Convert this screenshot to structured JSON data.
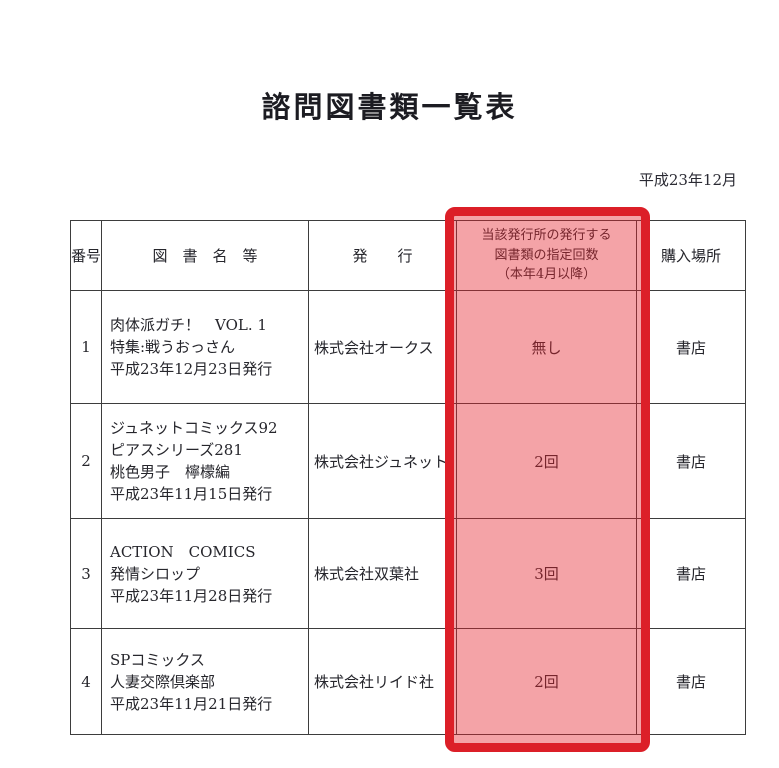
{
  "page": {
    "title": "諮問図書類一覧表",
    "date": "平成23年12月"
  },
  "colors": {
    "highlight_border": "#dc1f28",
    "highlight_fill": "rgba(229,35,45,0.42)",
    "table_border": "#3d3d3d",
    "text": "#26262c"
  },
  "table": {
    "headers": {
      "no": "番号",
      "title": "図　書　名　等",
      "publisher": "発　　行",
      "count_lines": [
        "当該発行所の発行する",
        "図書類の指定回数",
        "（本年4月以降）"
      ],
      "place": "購入場所"
    },
    "rows": [
      {
        "no": "1",
        "title_lines": [
          "肉体派ガチ！　VOL. 1",
          "特集:戦うおっさん",
          "平成23年12月23日発行"
        ],
        "publisher": "株式会社オークス",
        "count": "無し",
        "place": "書店"
      },
      {
        "no": "2",
        "title_lines": [
          "ジュネットコミックス92",
          "ピアスシリーズ281",
          "桃色男子　檸檬編",
          "平成23年11月15日発行"
        ],
        "publisher": "株式会社ジュネット",
        "count": "2回",
        "place": "書店"
      },
      {
        "no": "3",
        "title_lines": [
          "ACTION　COMICS",
          "発情シロップ",
          "平成23年11月28日発行"
        ],
        "publisher": "株式会社双葉社",
        "count": "3回",
        "place": "書店"
      },
      {
        "no": "4",
        "title_lines": [
          "SPコミックス",
          "人妻交際倶楽部",
          "平成23年11月21日発行"
        ],
        "publisher": "株式会社リイド社",
        "count": "2回",
        "place": "書店"
      }
    ]
  }
}
